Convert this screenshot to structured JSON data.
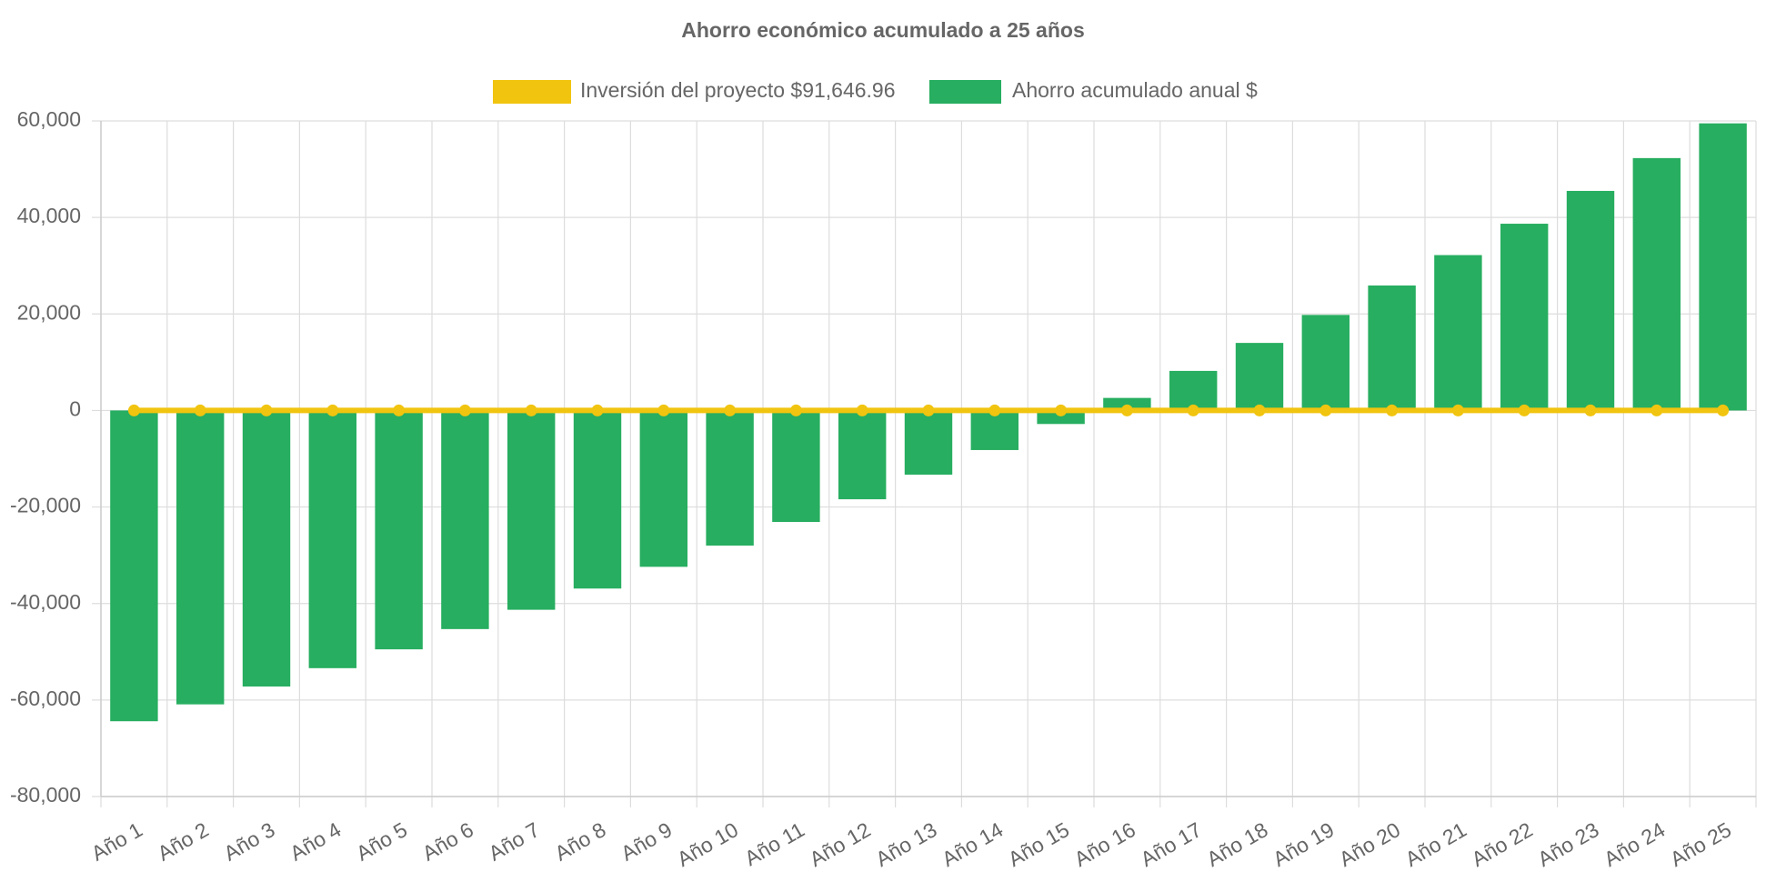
{
  "chart_data": {
    "type": "bar",
    "title": "Ahorro económico acumulado a 25 años",
    "categories": [
      "Año 1",
      "Año 2",
      "Año 3",
      "Año 4",
      "Año 5",
      "Año 6",
      "Año 7",
      "Año 8",
      "Año 9",
      "Año 10",
      "Año 11",
      "Año 12",
      "Año 13",
      "Año 14",
      "Año 15",
      "Año 16",
      "Año 17",
      "Año 18",
      "Año 19",
      "Año 20",
      "Año 21",
      "Año 22",
      "Año 23",
      "Año 24",
      "Año 25"
    ],
    "series": [
      {
        "name": "Inversión del proyecto $91,646.96",
        "type": "line",
        "color": "#f1c40f",
        "values": [
          0,
          0,
          0,
          0,
          0,
          0,
          0,
          0,
          0,
          0,
          0,
          0,
          0,
          0,
          0,
          0,
          0,
          0,
          0,
          0,
          0,
          0,
          0,
          0,
          0
        ]
      },
      {
        "name": "Ahorro acumulado anual $",
        "type": "bar",
        "color": "#27ae60",
        "values": [
          -64400,
          -60900,
          -57200,
          -53400,
          -49500,
          -45300,
          -41300,
          -36900,
          -32400,
          -28000,
          -23100,
          -18400,
          -13300,
          -8200,
          -2800,
          2600,
          8200,
          14000,
          19800,
          25900,
          32200,
          38700,
          45500,
          52300,
          59500
        ]
      }
    ],
    "ylim": [
      -80000,
      60000
    ],
    "yticks": [
      {
        "value": -80000,
        "label": "-80,000"
      },
      {
        "value": -60000,
        "label": "-60,000"
      },
      {
        "value": -40000,
        "label": "-40,000"
      },
      {
        "value": -20000,
        "label": "-20,000"
      },
      0,
      {
        "value": 20000,
        "label": "20,000"
      },
      {
        "value": 40000,
        "label": "40,000"
      },
      {
        "value": 60000,
        "label": "60,000"
      }
    ],
    "grid": true
  }
}
